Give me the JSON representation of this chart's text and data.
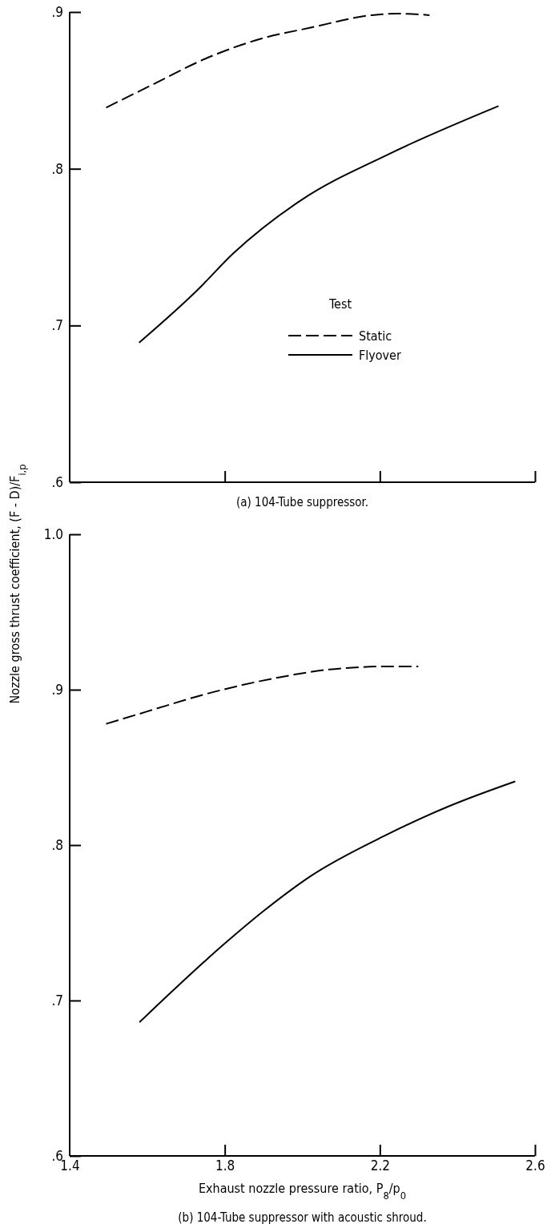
{
  "chart_data": [
    {
      "type": "line",
      "title": "(a) 104-Tube suppressor.",
      "ylabel": "Nozzle gross thrust coefficient, (F - D)/F$_{i,p}$",
      "legend_title": "Test",
      "legend": "right",
      "tick_labels": "y",
      "xlim": [
        1.4,
        2.6
      ],
      "xticks": [
        1.8,
        2.2,
        2.6
      ],
      "ylim": [
        0.6,
        0.9
      ],
      "yticks": [
        {
          "value": 0.6,
          "label": ".6"
        },
        {
          "value": 0.7,
          "label": ".7"
        },
        {
          "value": 0.8,
          "label": ".8"
        },
        {
          "value": 0.9,
          "label": ".9"
        }
      ],
      "series": [
        {
          "name": "Static",
          "color": "#000000",
          "line_style": "dashed",
          "x": [
            1.494,
            1.6,
            1.767,
            1.894,
            2.021,
            2.18,
            2.244,
            2.328
          ],
          "values": [
            0.839,
            0.852,
            0.872,
            0.883,
            0.89,
            0.898,
            0.899,
            0.898
          ]
        },
        {
          "name": "Flyover",
          "color": "#000000",
          "line_style": "solid",
          "x": [
            1.579,
            1.727,
            1.822,
            1.997,
            2.22,
            2.506
          ],
          "values": [
            0.689,
            0.722,
            0.746,
            0.78,
            0.809,
            0.84
          ]
        }
      ]
    },
    {
      "type": "line",
      "title": "(b) 104-Tube suppressor with acoustic shroud.",
      "xlabel": "Exhaust nozzle pressure ratio, P$_{8}$/p$_{0}$",
      "xlim": [
        1.4,
        2.6
      ],
      "xticks": [
        1.4,
        1.8,
        2.2,
        2.6
      ],
      "ylim": [
        0.6,
        1.0
      ],
      "yticks": [
        {
          "value": 0.6,
          "label": ".6"
        },
        {
          "value": 0.7,
          "label": ".7"
        },
        {
          "value": 0.8,
          "label": ".8"
        },
        {
          "value": 0.9,
          "label": ".9"
        },
        {
          "value": 1.0,
          "label": "1.0"
        }
      ],
      "series": [
        {
          "color": "#000000",
          "line_style": "dashed",
          "x": [
            1.494,
            1.6,
            1.763,
            1.942,
            2.069,
            2.228,
            2.299
          ],
          "values": [
            0.878,
            0.886,
            0.898,
            0.908,
            0.913,
            0.915,
            0.915
          ]
        },
        {
          "color": "#000000",
          "line_style": "solid",
          "x": [
            1.58,
            1.806,
            1.902,
            2.021,
            2.212,
            2.378,
            2.549
          ],
          "values": [
            0.686,
            0.738,
            0.758,
            0.78,
            0.806,
            0.825,
            0.841
          ]
        }
      ]
    }
  ]
}
